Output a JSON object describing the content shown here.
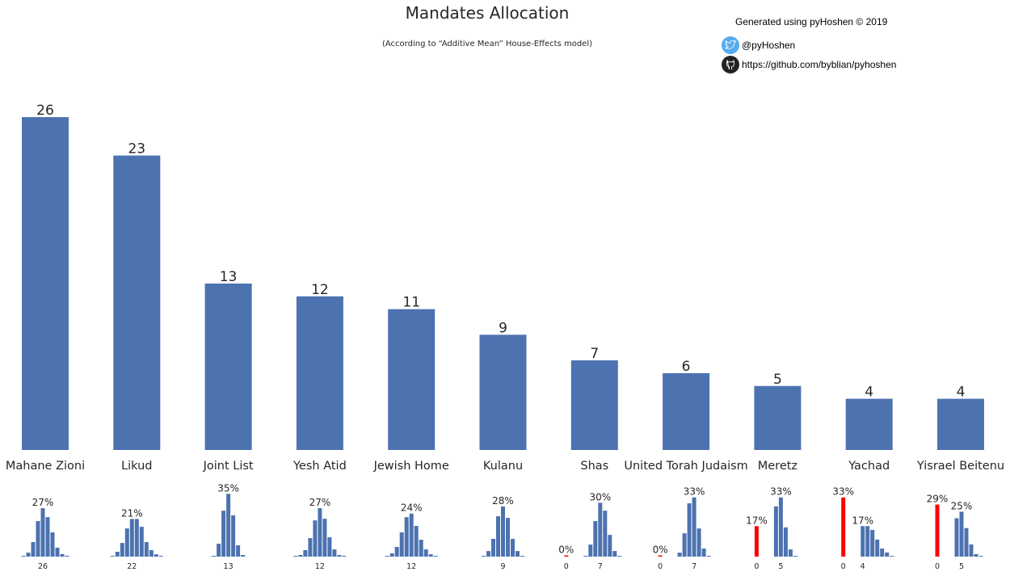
{
  "header": {
    "title": "Mandates Allocation",
    "subtitle": "(According to “Additive Mean” House-Effects model)",
    "credit": "Generated using pyHoshen © 2019",
    "twitter": "@pyHoshen",
    "github": "https://github.com/byblian/pyhoshen",
    "twitter_color": "#55acee",
    "github_color": "#222222"
  },
  "colors": {
    "bar": "#4c72b0",
    "below_threshold": "#ff0000"
  },
  "chart_data": {
    "type": "bar",
    "title": "Mandates Allocation",
    "categories": [
      "Mahane Zioni",
      "Likud",
      "Joint List",
      "Yesh Atid",
      "Jewish Home",
      "Kulanu",
      "Shas",
      "United Torah Judaism",
      "Meretz",
      "Yachad",
      "Yisrael Beitenu"
    ],
    "values": [
      26,
      23,
      13,
      12,
      11,
      9,
      7,
      6,
      5,
      4,
      4
    ],
    "ylim": [
      0,
      28
    ],
    "grid": false,
    "distributions": [
      {
        "party": "Mahane Zioni",
        "seats": [
          22,
          23,
          24,
          25,
          26,
          27,
          28,
          29,
          30,
          31
        ],
        "pct": [
          0.3,
          2.2,
          8.1,
          19.8,
          27,
          22,
          13.5,
          5,
          1.4,
          0.5
        ],
        "peak_label": "27%",
        "tick": "26"
      },
      {
        "party": "Likud",
        "seats": [
          18,
          19,
          20,
          21,
          22,
          23,
          24,
          25,
          26,
          27,
          28
        ],
        "pct": [
          0.3,
          2.7,
          7.6,
          15.7,
          21,
          21,
          16.6,
          8.1,
          3.6,
          1.3,
          0.4
        ],
        "peak_label": "21%",
        "tick": "22"
      },
      {
        "party": "Joint List",
        "seats": [
          10,
          11,
          12,
          13,
          14,
          15,
          16
        ],
        "pct": [
          0.3,
          7.2,
          25.6,
          35,
          23,
          6.3,
          0.9
        ],
        "peak_label": "35%",
        "tick": "13"
      },
      {
        "party": "Yesh Atid",
        "seats": [
          7,
          8,
          9,
          10,
          11,
          12,
          13,
          14,
          15,
          16,
          17
        ],
        "pct": [
          0.3,
          0.9,
          3.6,
          10.3,
          20.2,
          27,
          21.1,
          10.8,
          4,
          0.9,
          0.3
        ],
        "peak_label": "27%",
        "tick": "12"
      },
      {
        "party": "Jewish Home",
        "seats": [
          7,
          8,
          9,
          10,
          11,
          12,
          13,
          14,
          15,
          16,
          17
        ],
        "pct": [
          0.3,
          1.8,
          5.4,
          13.5,
          22,
          24,
          17.1,
          9.4,
          4,
          1.3,
          0.3
        ],
        "peak_label": "24%",
        "tick": "12"
      },
      {
        "party": "Kulanu",
        "seats": [
          5,
          6,
          7,
          8,
          9,
          10,
          11,
          12,
          13
        ],
        "pct": [
          0.3,
          3.1,
          9.9,
          22.5,
          28,
          21.6,
          9.9,
          3.1,
          0.3
        ],
        "peak_label": "28%",
        "tick": "9"
      },
      {
        "party": "Shas",
        "zero_pct": 0.3,
        "zero_label": "0%",
        "seats": [
          4,
          5,
          6,
          7,
          8,
          9,
          10,
          11
        ],
        "pct": [
          0.4,
          6.7,
          19.8,
          30,
          25.6,
          12.1,
          3.1,
          0.3
        ],
        "peak_label": "30%",
        "tick": "7"
      },
      {
        "party": "United Torah Judaism",
        "zero_pct": 0.3,
        "zero_label": "0%",
        "seats": [
          4,
          5,
          6,
          7,
          8,
          9,
          10
        ],
        "pct": [
          2.2,
          13,
          29.7,
          33,
          15.7,
          4.5,
          0.3
        ],
        "peak_label": "33%",
        "tick": "7"
      },
      {
        "party": "Meretz",
        "zero_pct": 17,
        "zero_label": "17%",
        "seats": [
          4,
          5,
          6,
          7,
          8
        ],
        "pct": [
          28,
          33,
          16.3,
          4,
          0.3
        ],
        "peak_label": "33%",
        "tick": "5"
      },
      {
        "party": "Yachad",
        "zero_pct": 33,
        "zero_label": "33%",
        "seats": [
          4,
          5,
          6,
          7,
          8,
          9,
          10
        ],
        "pct": [
          17,
          17,
          14.9,
          9.5,
          4.5,
          2.3,
          0.3
        ],
        "peak_label": "17%",
        "tick": "4"
      },
      {
        "party": "Yisrael Beitenu",
        "zero_pct": 29,
        "zero_label": "29%",
        "seats": [
          4,
          5,
          6,
          7,
          8,
          9
        ],
        "pct": [
          21.4,
          25,
          15.9,
          6.8,
          1.4,
          0.3
        ],
        "peak_label": "25%",
        "tick": "5"
      }
    ]
  }
}
